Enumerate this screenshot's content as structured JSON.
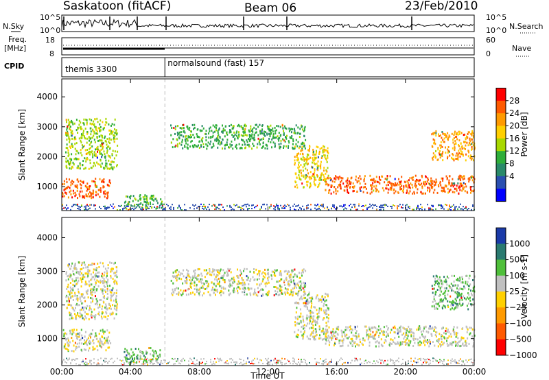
{
  "header": {
    "station": "Saskatoon (fitACF)",
    "beam": "Beam 06",
    "date": "23/Feb/2010"
  },
  "noise_panel": {
    "left_label": "N.Sky",
    "right_label": "N.Search",
    "left_ticks": [
      "10^5",
      "10^0"
    ],
    "right_ticks": [
      "10^5",
      "10^0"
    ]
  },
  "freq_panel": {
    "left_label_top": "Freq.",
    "left_label_unit": "[MHz]",
    "left_ticks": [
      "18",
      "8"
    ],
    "right_label": "Nave",
    "right_ticks": [
      "60",
      "0"
    ]
  },
  "cpid_panel": {
    "label": "CPID",
    "modes": [
      {
        "name": "themis 3300",
        "start_hour": 0
      },
      {
        "name": "normalsound (fast) 157",
        "start_hour": 6
      }
    ]
  },
  "chart_data": [
    {
      "type": "heatmap",
      "title": "",
      "ylabel": "Slant Range [km]",
      "xlabel": "",
      "xlim": [
        0,
        24
      ],
      "ylim": [
        200,
        4600
      ],
      "yticks": [
        "1000",
        "2000",
        "3000",
        "4000"
      ],
      "colorbar_label": "Power [dB]",
      "colorbar_ticks": [
        "28",
        "24",
        "20",
        "16",
        "12",
        "8",
        "4"
      ],
      "colorbar_colors": [
        "#ff0000",
        "#ff5a00",
        "#ff9a00",
        "#ffcf00",
        "#a8d800",
        "#2fae3a",
        "#2a8a6a",
        "#2a4fb0",
        "#0000ff"
      ],
      "ground_scatter_color": "#c0c0c0",
      "features": [
        {
          "name": "near-range band",
          "start_hour": 0.0,
          "end_hour": 2.8,
          "range_low_km": 650,
          "range_high_km": 1300,
          "level_db": 26
        },
        {
          "name": "early arc",
          "start_hour": 0.2,
          "end_hour": 3.2,
          "range_low_km": 1600,
          "range_high_km": 3300,
          "level_db": 14
        },
        {
          "name": "mid-range patch",
          "start_hour": 3.6,
          "end_hour": 5.8,
          "range_low_km": 300,
          "range_high_km": 750,
          "level_db": 10
        },
        {
          "name": "far-range band",
          "start_hour": 6.3,
          "end_hour": 14.2,
          "range_low_km": 2300,
          "range_high_km": 3100,
          "level_db": 12
        },
        {
          "name": "descending band",
          "start_hour": 13.5,
          "end_hour": 15.5,
          "range_low_km": 1000,
          "range_high_km": 2400,
          "level_db": 18
        },
        {
          "name": "evening band",
          "start_hour": 15.3,
          "end_hour": 24.0,
          "range_low_km": 800,
          "range_high_km": 1400,
          "level_db": 24
        },
        {
          "name": "late patch",
          "start_hour": 21.5,
          "end_hour": 24.0,
          "range_low_km": 1900,
          "range_high_km": 2900,
          "level_db": 20
        }
      ]
    },
    {
      "type": "heatmap",
      "title": "",
      "ylabel": "Slant Range [km]",
      "xlabel": "Time UT",
      "xlim": [
        0,
        24
      ],
      "ylim": [
        200,
        4600
      ],
      "xticks": [
        "00:00",
        "04:00",
        "08:00",
        "12:00",
        "16:00",
        "20:00",
        "00:00"
      ],
      "yticks": [
        "1000",
        "2000",
        "3000",
        "4000"
      ],
      "colorbar_label": "Velocity [m s-1]",
      "colorbar_ticks": [
        "1000",
        "500",
        "100",
        "25",
        "−25",
        "−100",
        "−500",
        "−1000"
      ],
      "colorbar_colors": [
        "#1a3aa8",
        "#2a7a70",
        "#4fbf3a",
        "#c0c0c0",
        "#ffd000",
        "#ff9a00",
        "#ff5a00",
        "#ff0000"
      ],
      "ground_scatter_color": "#c0c0c0",
      "features": [
        {
          "name": "near-range band",
          "start_hour": 0.0,
          "end_hour": 2.8,
          "range_low_km": 650,
          "range_high_km": 1300,
          "velocity_ms": 0
        },
        {
          "name": "early arc",
          "start_hour": 0.2,
          "end_hour": 3.2,
          "range_low_km": 1600,
          "range_high_km": 3300,
          "velocity_ms": 0
        },
        {
          "name": "mid-range patch",
          "start_hour": 3.6,
          "end_hour": 5.8,
          "range_low_km": 300,
          "range_high_km": 750,
          "velocity_ms": 150
        },
        {
          "name": "far-range band",
          "start_hour": 6.3,
          "end_hour": 14.2,
          "range_low_km": 2300,
          "range_high_km": 3100,
          "velocity_ms": 0
        },
        {
          "name": "descending band",
          "start_hour": 13.5,
          "end_hour": 15.5,
          "range_low_km": 1000,
          "range_high_km": 2400,
          "velocity_ms": 0
        },
        {
          "name": "evening band",
          "start_hour": 15.3,
          "end_hour": 24.0,
          "range_low_km": 800,
          "range_high_km": 1400,
          "velocity_ms": 0
        },
        {
          "name": "late patch",
          "start_hour": 21.5,
          "end_hour": 24.0,
          "range_low_km": 1900,
          "range_high_km": 2900,
          "velocity_ms": 150
        }
      ]
    }
  ]
}
